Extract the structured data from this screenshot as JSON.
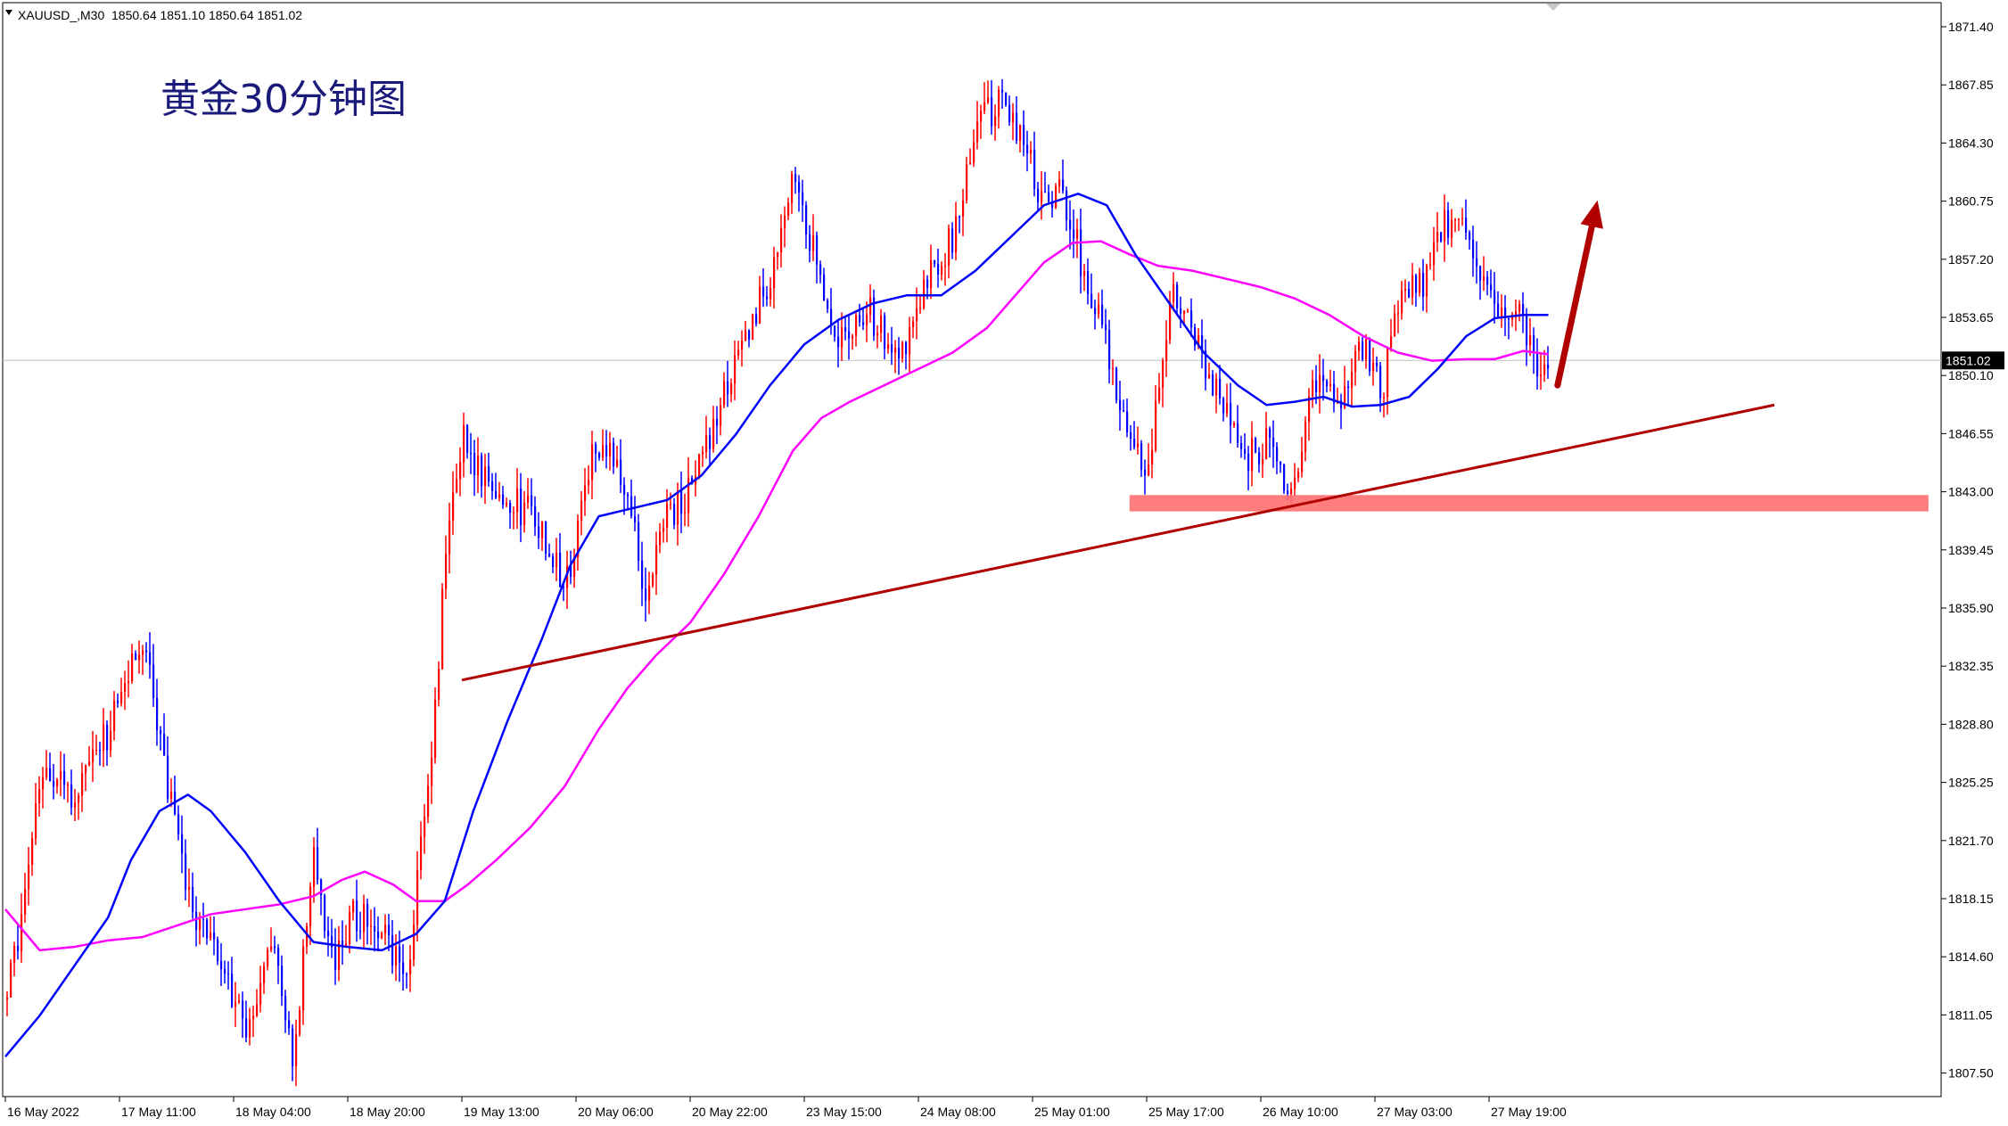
{
  "header": {
    "symbol": "XAUUSD_,M30",
    "ohlc": "1850.64 1851.10 1850.64 1851.02"
  },
  "title": "黄金30分钟图",
  "colors": {
    "bull": "#ff0000",
    "bear": "#0000ff",
    "ma_fast": "#0000ff",
    "ma_slow": "#ff00ff",
    "trendline": "#b00000",
    "support_zone": "#ff6f6f",
    "arrow": "#b00000",
    "price_tag_bg": "#000000",
    "price_tag_text": "#ffffff",
    "current_line": "#c0c0c0"
  },
  "chart_data": {
    "type": "candlestick",
    "title": "黄金30分钟图",
    "ylim": [
      1805.5,
      1873.5
    ],
    "price_ticks": [
      "1871.40",
      "1867.85",
      "1864.30",
      "1860.75",
      "1857.20",
      "1853.65",
      "1850.10",
      "1846.55",
      "1843.00",
      "1839.45",
      "1835.90",
      "1832.35",
      "1828.80",
      "1825.25",
      "1821.70",
      "1818.15",
      "1814.60",
      "1811.05",
      "1807.50"
    ],
    "time_labels": [
      "16 May 2022",
      "17 May 11:00",
      "18 May 04:00",
      "18 May 20:00",
      "19 May 13:00",
      "20 May 06:00",
      "20 May 22:00",
      "23 May 15:00",
      "24 May 08:00",
      "25 May 01:00",
      "25 May 17:00",
      "26 May 10:00",
      "27 May 03:00",
      "27 May 19:00"
    ],
    "current_price": "1851.02",
    "current_price_value": 1851.02,
    "price_path": [
      {
        "t": 0,
        "p": 1812.0
      },
      {
        "t": 0.1,
        "p": 1816.0
      },
      {
        "t": 0.3,
        "p": 1826.5
      },
      {
        "t": 0.6,
        "p": 1824.5
      },
      {
        "t": 0.9,
        "p": 1828.5
      },
      {
        "t": 1.2,
        "p": 1834.0
      },
      {
        "t": 1.4,
        "p": 1825.0
      },
      {
        "t": 1.6,
        "p": 1818.0
      },
      {
        "t": 1.85,
        "p": 1815.0
      },
      {
        "t": 2.1,
        "p": 1810.0
      },
      {
        "t": 2.3,
        "p": 1816.0
      },
      {
        "t": 2.5,
        "p": 1808.5
      },
      {
        "t": 2.7,
        "p": 1821.0
      },
      {
        "t": 2.85,
        "p": 1814.0
      },
      {
        "t": 3.0,
        "p": 1817.0
      },
      {
        "t": 3.25,
        "p": 1816.5
      },
      {
        "t": 3.5,
        "p": 1813.5
      },
      {
        "t": 3.6,
        "p": 1819.5
      },
      {
        "t": 3.75,
        "p": 1829.5
      },
      {
        "t": 3.85,
        "p": 1840.0
      },
      {
        "t": 4.0,
        "p": 1846.0
      },
      {
        "t": 4.3,
        "p": 1843.0
      },
      {
        "t": 4.6,
        "p": 1841.5
      },
      {
        "t": 4.9,
        "p": 1837.5
      },
      {
        "t": 5.15,
        "p": 1846.5
      },
      {
        "t": 5.4,
        "p": 1844.0
      },
      {
        "t": 5.6,
        "p": 1836.5
      },
      {
        "t": 5.75,
        "p": 1841.0
      },
      {
        "t": 6.0,
        "p": 1843.0
      },
      {
        "t": 6.25,
        "p": 1848.5
      },
      {
        "t": 6.5,
        "p": 1853.0
      },
      {
        "t": 6.75,
        "p": 1857.0
      },
      {
        "t": 6.9,
        "p": 1863.0
      },
      {
        "t": 7.05,
        "p": 1858.0
      },
      {
        "t": 7.3,
        "p": 1852.0
      },
      {
        "t": 7.55,
        "p": 1854.0
      },
      {
        "t": 7.8,
        "p": 1851.0
      },
      {
        "t": 8.05,
        "p": 1856.0
      },
      {
        "t": 8.3,
        "p": 1858.5
      },
      {
        "t": 8.5,
        "p": 1866.0
      },
      {
        "t": 8.7,
        "p": 1866.5
      },
      {
        "t": 8.9,
        "p": 1865.0
      },
      {
        "t": 9.05,
        "p": 1861.0
      },
      {
        "t": 9.25,
        "p": 1861.5
      },
      {
        "t": 9.45,
        "p": 1856.0
      },
      {
        "t": 9.65,
        "p": 1851.5
      },
      {
        "t": 9.85,
        "p": 1846.0
      },
      {
        "t": 10.0,
        "p": 1844.0
      },
      {
        "t": 10.2,
        "p": 1855.0
      },
      {
        "t": 10.4,
        "p": 1853.0
      },
      {
        "t": 10.65,
        "p": 1848.0
      },
      {
        "t": 10.85,
        "p": 1845.0
      },
      {
        "t": 11.05,
        "p": 1846.0
      },
      {
        "t": 11.25,
        "p": 1843.0
      },
      {
        "t": 11.45,
        "p": 1850.0
      },
      {
        "t": 11.7,
        "p": 1849.0
      },
      {
        "t": 11.9,
        "p": 1852.0
      },
      {
        "t": 12.05,
        "p": 1849.0
      },
      {
        "t": 12.2,
        "p": 1855.0
      },
      {
        "t": 12.4,
        "p": 1855.5
      },
      {
        "t": 12.6,
        "p": 1859.5
      },
      {
        "t": 12.8,
        "p": 1859.0
      },
      {
        "t": 12.95,
        "p": 1855.0
      },
      {
        "t": 13.1,
        "p": 1853.5
      },
      {
        "t": 13.3,
        "p": 1853.5
      },
      {
        "t": 13.4,
        "p": 1849.5
      },
      {
        "t": 13.52,
        "p": 1851.0
      }
    ],
    "ma_fast": [
      {
        "t": 0,
        "p": 1808.5
      },
      {
        "t": 0.3,
        "p": 1811.0
      },
      {
        "t": 0.6,
        "p": 1814.0
      },
      {
        "t": 0.9,
        "p": 1817.0
      },
      {
        "t": 1.1,
        "p": 1820.5
      },
      {
        "t": 1.35,
        "p": 1823.5
      },
      {
        "t": 1.6,
        "p": 1824.5
      },
      {
        "t": 1.8,
        "p": 1823.5
      },
      {
        "t": 2.1,
        "p": 1821.0
      },
      {
        "t": 2.4,
        "p": 1818.0
      },
      {
        "t": 2.7,
        "p": 1815.5
      },
      {
        "t": 3.0,
        "p": 1815.2
      },
      {
        "t": 3.3,
        "p": 1815.0
      },
      {
        "t": 3.6,
        "p": 1816.0
      },
      {
        "t": 3.85,
        "p": 1818.0
      },
      {
        "t": 4.1,
        "p": 1823.5
      },
      {
        "t": 4.4,
        "p": 1829.0
      },
      {
        "t": 4.7,
        "p": 1834.0
      },
      {
        "t": 4.95,
        "p": 1838.5
      },
      {
        "t": 5.2,
        "p": 1841.5
      },
      {
        "t": 5.5,
        "p": 1842.0
      },
      {
        "t": 5.8,
        "p": 1842.5
      },
      {
        "t": 6.1,
        "p": 1844.0
      },
      {
        "t": 6.4,
        "p": 1846.5
      },
      {
        "t": 6.7,
        "p": 1849.5
      },
      {
        "t": 7.0,
        "p": 1852.0
      },
      {
        "t": 7.3,
        "p": 1853.5
      },
      {
        "t": 7.6,
        "p": 1854.5
      },
      {
        "t": 7.9,
        "p": 1855.0
      },
      {
        "t": 8.2,
        "p": 1855.0
      },
      {
        "t": 8.5,
        "p": 1856.5
      },
      {
        "t": 8.8,
        "p": 1858.5
      },
      {
        "t": 9.1,
        "p": 1860.5
      },
      {
        "t": 9.4,
        "p": 1861.2
      },
      {
        "t": 9.65,
        "p": 1860.5
      },
      {
        "t": 9.9,
        "p": 1857.5
      },
      {
        "t": 10.2,
        "p": 1854.5
      },
      {
        "t": 10.5,
        "p": 1851.5
      },
      {
        "t": 10.8,
        "p": 1849.5
      },
      {
        "t": 11.05,
        "p": 1848.3
      },
      {
        "t": 11.3,
        "p": 1848.5
      },
      {
        "t": 11.55,
        "p": 1848.8
      },
      {
        "t": 11.8,
        "p": 1848.2
      },
      {
        "t": 12.05,
        "p": 1848.3
      },
      {
        "t": 12.3,
        "p": 1848.8
      },
      {
        "t": 12.55,
        "p": 1850.5
      },
      {
        "t": 12.8,
        "p": 1852.5
      },
      {
        "t": 13.05,
        "p": 1853.6
      },
      {
        "t": 13.3,
        "p": 1853.8
      },
      {
        "t": 13.52,
        "p": 1853.8
      }
    ],
    "ma_slow": [
      {
        "t": 0,
        "p": 1817.5
      },
      {
        "t": 0.3,
        "p": 1815.0
      },
      {
        "t": 0.6,
        "p": 1815.2
      },
      {
        "t": 0.9,
        "p": 1815.6
      },
      {
        "t": 1.2,
        "p": 1815.8
      },
      {
        "t": 1.5,
        "p": 1816.5
      },
      {
        "t": 1.8,
        "p": 1817.2
      },
      {
        "t": 2.1,
        "p": 1817.5
      },
      {
        "t": 2.4,
        "p": 1817.8
      },
      {
        "t": 2.7,
        "p": 1818.3
      },
      {
        "t": 2.95,
        "p": 1819.3
      },
      {
        "t": 3.15,
        "p": 1819.8
      },
      {
        "t": 3.4,
        "p": 1819.0
      },
      {
        "t": 3.6,
        "p": 1818.0
      },
      {
        "t": 3.85,
        "p": 1818.0
      },
      {
        "t": 4.05,
        "p": 1819.0
      },
      {
        "t": 4.3,
        "p": 1820.5
      },
      {
        "t": 4.6,
        "p": 1822.5
      },
      {
        "t": 4.9,
        "p": 1825.0
      },
      {
        "t": 5.2,
        "p": 1828.5
      },
      {
        "t": 5.45,
        "p": 1831.0
      },
      {
        "t": 5.7,
        "p": 1833.0
      },
      {
        "t": 6.0,
        "p": 1835.0
      },
      {
        "t": 6.3,
        "p": 1838.0
      },
      {
        "t": 6.6,
        "p": 1841.5
      },
      {
        "t": 6.9,
        "p": 1845.5
      },
      {
        "t": 7.15,
        "p": 1847.5
      },
      {
        "t": 7.4,
        "p": 1848.5
      },
      {
        "t": 7.7,
        "p": 1849.5
      },
      {
        "t": 8.0,
        "p": 1850.5
      },
      {
        "t": 8.3,
        "p": 1851.5
      },
      {
        "t": 8.6,
        "p": 1853.0
      },
      {
        "t": 8.85,
        "p": 1855.0
      },
      {
        "t": 9.1,
        "p": 1857.0
      },
      {
        "t": 9.35,
        "p": 1858.2
      },
      {
        "t": 9.6,
        "p": 1858.3
      },
      {
        "t": 9.85,
        "p": 1857.5
      },
      {
        "t": 10.1,
        "p": 1856.8
      },
      {
        "t": 10.4,
        "p": 1856.5
      },
      {
        "t": 10.7,
        "p": 1856.0
      },
      {
        "t": 11.0,
        "p": 1855.5
      },
      {
        "t": 11.3,
        "p": 1854.8
      },
      {
        "t": 11.6,
        "p": 1853.8
      },
      {
        "t": 11.9,
        "p": 1852.5
      },
      {
        "t": 12.2,
        "p": 1851.5
      },
      {
        "t": 12.5,
        "p": 1851.0
      },
      {
        "t": 12.8,
        "p": 1851.1
      },
      {
        "t": 13.05,
        "p": 1851.1
      },
      {
        "t": 13.3,
        "p": 1851.6
      },
      {
        "t": 13.52,
        "p": 1851.4
      }
    ],
    "trendline": [
      {
        "t": 4.0,
        "p": 1831.5
      },
      {
        "t": 15.5,
        "p": 1848.3
      }
    ],
    "support_zone": {
      "t_start": 9.85,
      "t_end": 16.85,
      "p_low": 1841.8,
      "p_high": 1842.8
    },
    "arrow": {
      "from": {
        "t": 13.6,
        "p": 1849.5
      },
      "to": {
        "t": 13.95,
        "p": 1860.8
      }
    }
  }
}
